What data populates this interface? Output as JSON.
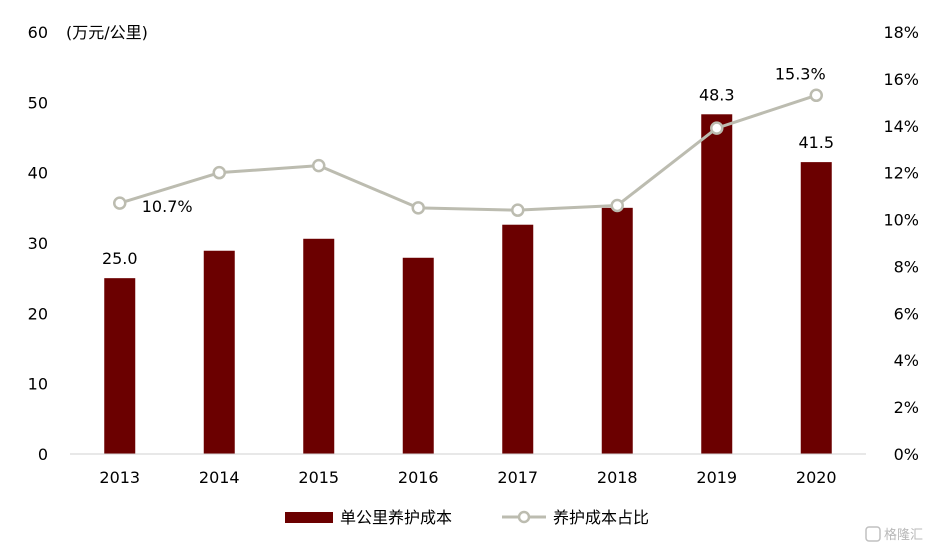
{
  "chart_data": {
    "type": "bar",
    "categories": [
      "2013",
      "2014",
      "2015",
      "2016",
      "2017",
      "2018",
      "2019",
      "2020"
    ],
    "series": [
      {
        "name": "单公里养护成本",
        "type": "bar",
        "axis": "left",
        "values": [
          25.0,
          28.9,
          30.6,
          27.9,
          32.6,
          35.0,
          48.3,
          41.5
        ],
        "color": "#6b0000"
      },
      {
        "name": "养护成本占比",
        "type": "line",
        "axis": "right",
        "values": [
          10.7,
          12.0,
          12.3,
          10.5,
          10.4,
          10.6,
          13.9,
          15.3
        ],
        "color": "#bcbcb0"
      }
    ],
    "bar_labels": [
      {
        "index": 0,
        "text": "25.0"
      },
      {
        "index": 6,
        "text": "48.3"
      },
      {
        "index": 7,
        "text": "41.5"
      }
    ],
    "line_labels": [
      {
        "index": 0,
        "text": "10.7%"
      },
      {
        "index": 7,
        "text": "15.3%"
      }
    ],
    "y_left": {
      "unit_label": "(万元/公里)",
      "ylim": [
        0,
        60
      ],
      "ticks": [
        "0",
        "10",
        "20",
        "30",
        "40",
        "50",
        "60"
      ]
    },
    "y_right": {
      "ylim": [
        0,
        18
      ],
      "ticks": [
        "0%",
        "2%",
        "4%",
        "6%",
        "8%",
        "10%",
        "12%",
        "14%",
        "16%",
        "18%"
      ]
    },
    "legend_position": "bottom",
    "grid": false
  },
  "watermark": "格隆汇"
}
